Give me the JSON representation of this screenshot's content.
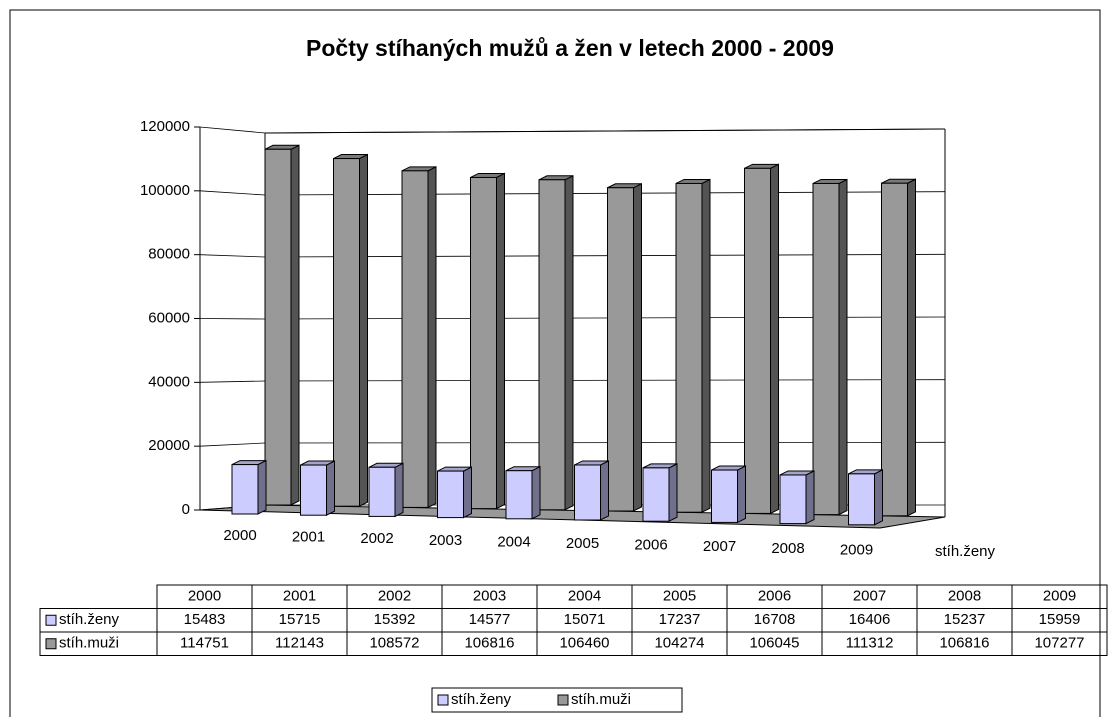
{
  "chart_data": {
    "type": "bar3d",
    "title": "Počty stíhaných mužů a žen v letech 2000 - 2009",
    "categories": [
      "2000",
      "2001",
      "2002",
      "2003",
      "2004",
      "2005",
      "2006",
      "2007",
      "2008",
      "2009"
    ],
    "series": [
      {
        "name": "stíh.ženy",
        "color": "#ccccff",
        "values": [
          15483,
          15715,
          15392,
          14577,
          15071,
          17237,
          16708,
          16406,
          15237,
          15959
        ]
      },
      {
        "name": "stíh.muži",
        "color": "#999999",
        "values": [
          114751,
          112143,
          108572,
          106816,
          106460,
          104274,
          106045,
          111312,
          106816,
          107277
        ]
      }
    ],
    "ylim": [
      0,
      120000
    ],
    "yticks": [
      0,
      20000,
      40000,
      60000,
      80000,
      100000,
      120000
    ],
    "grid": true
  }
}
